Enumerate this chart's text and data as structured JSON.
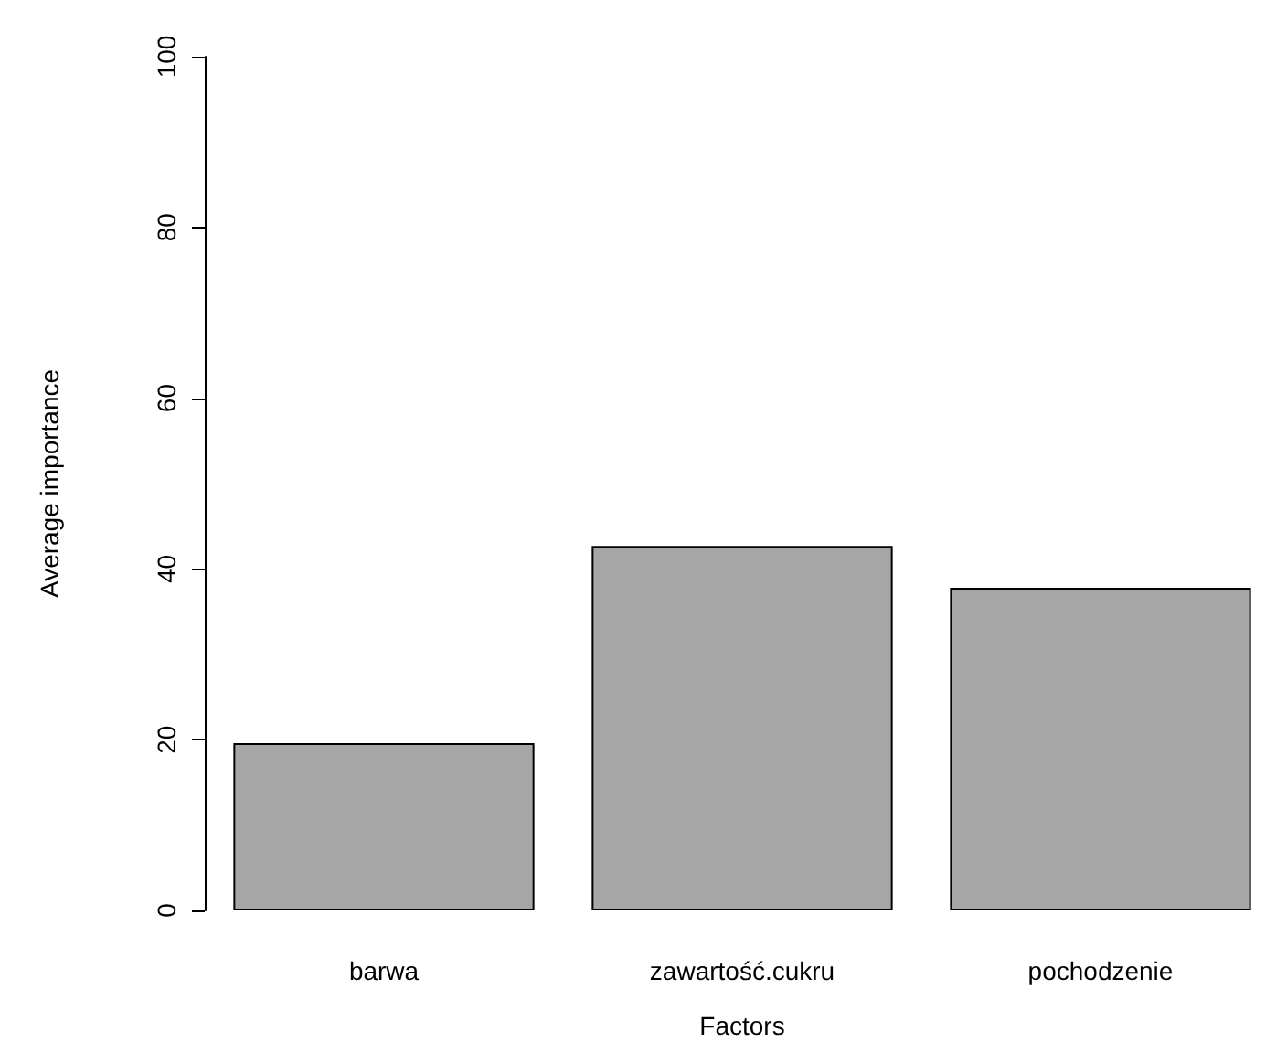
{
  "chart_data": {
    "type": "bar",
    "xlabel": "Factors",
    "ylabel": "Average importance",
    "categories": [
      "barwa",
      "zawartość.cukru",
      "pochodzenie"
    ],
    "values": [
      19.6,
      42.7,
      37.8
    ],
    "color": "#a6a6a6",
    "ylim": [
      0,
      100
    ],
    "yticks": [
      0,
      20,
      40,
      60,
      80,
      100
    ],
    "grid": false
  }
}
